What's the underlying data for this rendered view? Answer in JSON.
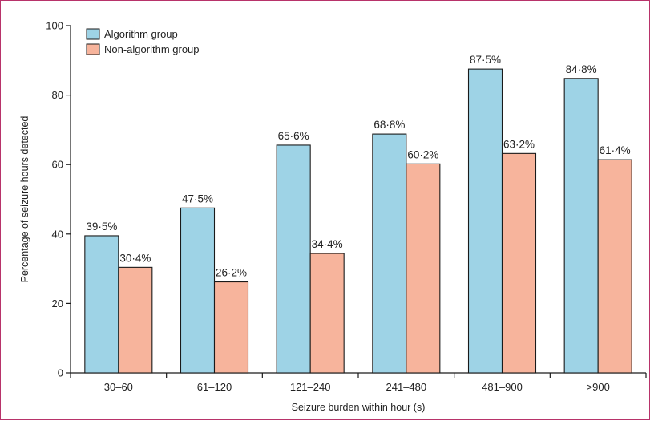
{
  "chart_data": {
    "type": "bar",
    "categories": [
      "30–60",
      "61–120",
      "121–240",
      "241–480",
      "481–900",
      ">900"
    ],
    "series": [
      {
        "name": "Algorithm group",
        "values": [
          39.5,
          47.5,
          65.6,
          68.8,
          87.5,
          84.8
        ],
        "labels": [
          "39·5%",
          "47·5%",
          "65·6%",
          "68·8%",
          "87·5%",
          "84·8%"
        ],
        "color": "#9ed3e6"
      },
      {
        "name": "Non-algorithm group",
        "values": [
          30.4,
          26.2,
          34.4,
          60.2,
          63.2,
          61.4
        ],
        "labels": [
          "30·4%",
          "26·2%",
          "34·4%",
          "60·2%",
          "63·2%",
          "61·4%"
        ],
        "color": "#f7b49c"
      }
    ],
    "xlabel": "Seizure burden within hour (s)",
    "ylabel": "Percentage of seizure hours detected",
    "ylim": [
      0,
      100
    ],
    "yticks": [
      0,
      20,
      40,
      60,
      80,
      100
    ],
    "legend_position": "top-left",
    "grid": false
  },
  "colors": {
    "frame_border": "#b8336a",
    "bar_stroke": "#1a1a1a",
    "axis": "#1a1a1a"
  }
}
